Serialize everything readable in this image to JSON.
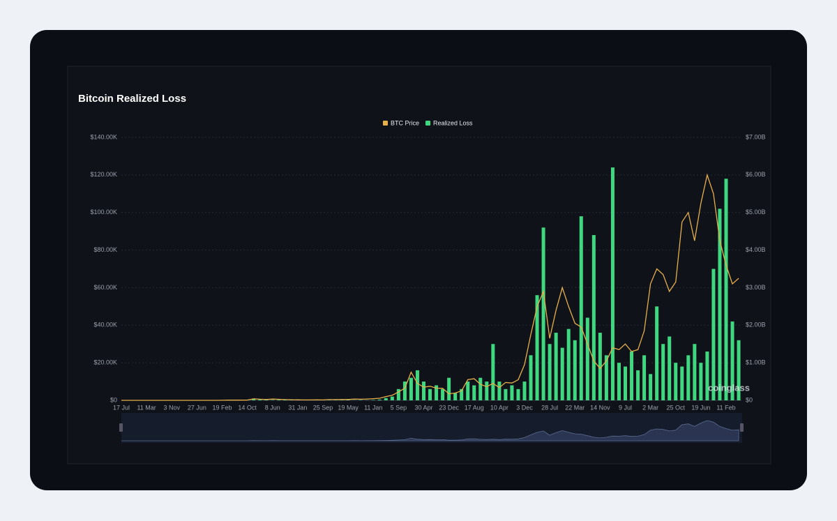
{
  "chart_data": {
    "type": "line_bar",
    "title": "Bitcoin Realized Loss",
    "watermark": "coinglass",
    "legend_position": "top",
    "grid": true,
    "categories": [
      "17 Jul",
      null,
      null,
      null,
      "11 Mar",
      null,
      null,
      null,
      "3 Nov",
      null,
      null,
      null,
      "27 Jun",
      null,
      null,
      null,
      "19 Feb",
      null,
      null,
      null,
      "14 Oct",
      null,
      null,
      null,
      "8 Jun",
      null,
      null,
      null,
      "31 Jan",
      null,
      null,
      null,
      "25 Sep",
      null,
      null,
      null,
      "19 May",
      null,
      null,
      null,
      "11 Jan",
      null,
      null,
      null,
      "5 Sep",
      null,
      null,
      null,
      "30 Apr",
      null,
      null,
      null,
      "23 Dec",
      null,
      null,
      null,
      "17 Aug",
      null,
      null,
      null,
      "10 Apr",
      null,
      null,
      null,
      "3 Dec",
      null,
      null,
      null,
      "28 Jul",
      null,
      null,
      null,
      "22 Mar",
      null,
      null,
      null,
      "14 Nov",
      null,
      null,
      null,
      "9 Jul",
      null,
      null,
      null,
      "2 Mar",
      null,
      null,
      null,
      "25 Oct",
      null,
      null,
      null,
      "19 Jun",
      null,
      null,
      null,
      "11 Feb",
      null,
      null
    ],
    "series": [
      {
        "name": "BTC Price",
        "type": "line",
        "color": "#e8b04a",
        "axis": "y",
        "values": [
          0.07,
          0.1,
          0.3,
          0.9,
          0.9,
          8,
          14,
          5,
          3,
          5,
          5,
          5,
          6,
          11,
          11,
          13,
          25,
          110,
          110,
          100,
          140,
          800,
          600,
          450,
          650,
          550,
          400,
          350,
          250,
          240,
          240,
          270,
          230,
          400,
          420,
          450,
          450,
          650,
          600,
          700,
          900,
          1100,
          2000,
          2700,
          4500,
          6500,
          15000,
          9000,
          7000,
          7500,
          6500,
          6400,
          3500,
          3900,
          5000,
          11000,
          11500,
          8500,
          7300,
          9000,
          6800,
          9500,
          9200,
          11000,
          19000,
          35000,
          50000,
          58000,
          33000,
          48000,
          60000,
          50000,
          41000,
          39000,
          30000,
          21000,
          17000,
          21000,
          28000,
          27000,
          30000,
          26000,
          27000,
          37000,
          62000,
          70000,
          67000,
          58000,
          63000,
          95000,
          100000,
          85000,
          105000,
          120000,
          110000,
          85000,
          72000,
          62000,
          65000
        ]
      },
      {
        "name": "Realized Loss",
        "type": "bar",
        "color": "#3fd77f",
        "axis": "y2",
        "values": [
          0,
          0,
          0,
          0,
          0,
          0,
          0,
          0,
          0,
          0,
          0,
          0,
          0,
          0,
          0,
          0,
          0,
          0,
          0,
          0,
          5000000,
          30000000,
          20000000,
          15000000,
          10000000,
          15000000,
          20000000,
          15000000,
          25000000,
          10000000,
          5000000,
          5000000,
          10000000,
          5000000,
          5000000,
          5000000,
          10000000,
          5000000,
          10000000,
          5000000,
          10000000,
          20000000,
          60000000,
          100000000,
          300000000,
          500000000,
          600000000,
          800000000,
          500000000,
          300000000,
          400000000,
          300000000,
          600000000,
          200000000,
          300000000,
          500000000,
          400000000,
          600000000,
          500000000,
          1500000000,
          500000000,
          300000000,
          400000000,
          300000000,
          500000000,
          1200000000,
          2800000000,
          4600000000,
          1500000000,
          1800000000,
          1400000000,
          1900000000,
          1600000000,
          4900000000,
          2200000000,
          4400000000,
          1800000000,
          1200000000,
          6200000000,
          1000000000,
          900000000,
          1300000000,
          800000000,
          1200000000,
          700000000,
          2500000000,
          1500000000,
          1700000000,
          1000000000,
          900000000,
          1200000000,
          1500000000,
          1000000000,
          1300000000,
          3500000000,
          5100000000,
          5900000000,
          2100000000,
          1600000000
        ]
      }
    ],
    "ylim": [
      0,
      140000
    ],
    "yticks": [
      {
        "value": 0,
        "label": "$0"
      },
      {
        "value": 20000,
        "label": "$20.00K"
      },
      {
        "value": 40000,
        "label": "$40.00K"
      },
      {
        "value": 60000,
        "label": "$60.00K"
      },
      {
        "value": 80000,
        "label": "$80.00K"
      },
      {
        "value": 100000,
        "label": "$100.00K"
      },
      {
        "value": 120000,
        "label": "$120.00K"
      },
      {
        "value": 140000,
        "label": "$140.00K"
      }
    ],
    "y2lim": [
      0,
      7000000000
    ],
    "y2ticks": [
      {
        "value": 0,
        "label": "$0"
      },
      {
        "value": 1000000000,
        "label": "$1.00B"
      },
      {
        "value": 2000000000,
        "label": "$2.00B"
      },
      {
        "value": 3000000000,
        "label": "$3.00B"
      },
      {
        "value": 4000000000,
        "label": "$4.00B"
      },
      {
        "value": 5000000000,
        "label": "$5.00B"
      },
      {
        "value": 6000000000,
        "label": "$6.00B"
      },
      {
        "value": 7000000000,
        "label": "$7.00B"
      }
    ]
  }
}
